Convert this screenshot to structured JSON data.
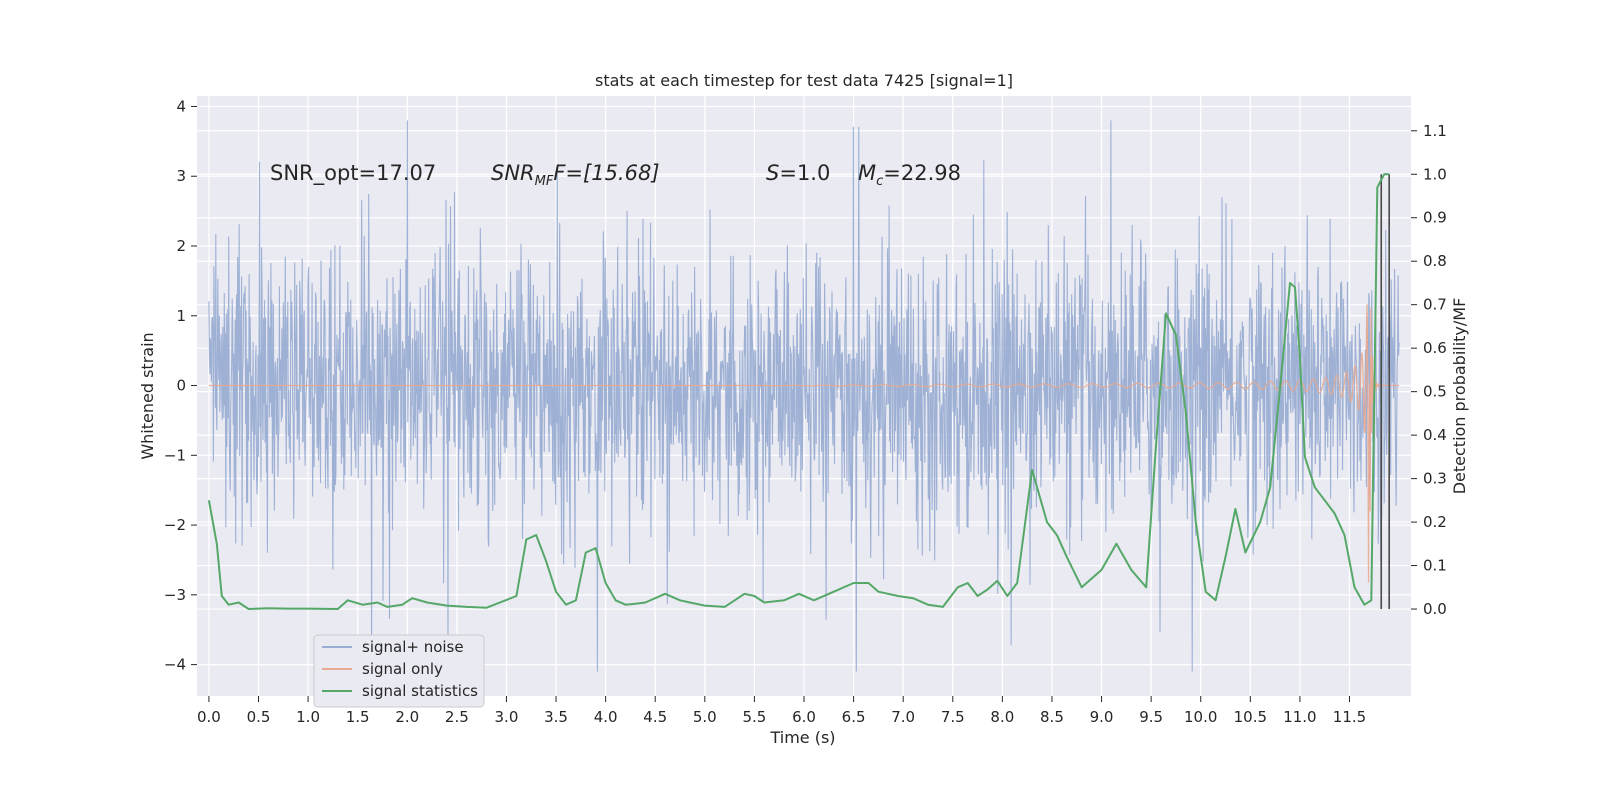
{
  "chart_data": {
    "type": "line",
    "title": "stats at each timestep for test data 7425 [signal=1]",
    "xlabel": "Time (s)",
    "ylabel_left": "Whitened strain",
    "ylabel_right": "Detection probability/MF",
    "xlim": [
      -0.12,
      12.12
    ],
    "ylim_left": [
      -4.45,
      4.15
    ],
    "ylim_right": [
      -0.2,
      1.18
    ],
    "x_ticks": [
      0,
      0.5,
      1,
      1.5,
      2,
      2.5,
      3,
      3.5,
      4,
      4.5,
      5,
      5.5,
      6,
      6.5,
      7,
      7.5,
      8,
      8.5,
      9,
      9.5,
      10,
      10.5,
      11,
      11.5
    ],
    "x_tick_labels": [
      "0.0",
      "0.5",
      "1.0",
      "1.5",
      "2.0",
      "2.5",
      "3.0",
      "3.5",
      "4.0",
      "4.5",
      "5.0",
      "5.5",
      "6.0",
      "6.5",
      "7.0",
      "7.5",
      "8.0",
      "8.5",
      "9.0",
      "9.5",
      "10.0",
      "10.5",
      "11.0",
      "11.5"
    ],
    "y_left_ticks": [
      -4,
      -3,
      -2,
      -1,
      0,
      1,
      2,
      3,
      4
    ],
    "y_left_tick_labels": [
      "−4",
      "−3",
      "−2",
      "−1",
      "0",
      "1",
      "2",
      "3",
      "4"
    ],
    "y_right_ticks": [
      0,
      0.1,
      0.2,
      0.3,
      0.4,
      0.5,
      0.6,
      0.7,
      0.8,
      0.9,
      1.0,
      1.1
    ],
    "y_right_tick_labels": [
      "0.0",
      "0.1",
      "0.2",
      "0.3",
      "0.4",
      "0.5",
      "0.6",
      "0.7",
      "0.8",
      "0.9",
      "1.0",
      "1.1"
    ],
    "grid": true,
    "legend_position": "lower-left",
    "annotations": [
      {
        "name": "snr-opt",
        "text": "SNR_opt=17.07"
      },
      {
        "name": "snr-mf",
        "base": "SNR",
        "sub": "MF",
        "tail": "F=[15.68]"
      },
      {
        "name": "s-value",
        "base": "S",
        "tail": "=1.0"
      },
      {
        "name": "chirp-mass",
        "base": "M",
        "sub": "c",
        "tail": "=22.98"
      }
    ],
    "series": [
      {
        "name": "signal+ noise",
        "axis": "left",
        "color": "#9aaed3",
        "style": "dense-noise",
        "x_range": [
          0,
          12
        ],
        "typical_amplitude": 1.2,
        "peak_range": [
          -4.1,
          3.8
        ]
      },
      {
        "name": "signal only",
        "axis": "left",
        "color": "#e8a98f",
        "style": "chirp",
        "x_range": [
          0,
          12
        ],
        "merger_time": 11.7,
        "peak_amplitude": 2.9
      },
      {
        "name": "signal statistics",
        "axis": "right",
        "color": "#55a868",
        "x": [
          0,
          0.08,
          0.13,
          0.2,
          0.3,
          0.4,
          0.6,
          0.8,
          1.0,
          1.3,
          1.4,
          1.55,
          1.7,
          1.8,
          1.95,
          2.05,
          2.2,
          2.4,
          2.6,
          2.8,
          3.1,
          3.2,
          3.3,
          3.4,
          3.5,
          3.6,
          3.7,
          3.8,
          3.9,
          4.0,
          4.1,
          4.2,
          4.3,
          4.4,
          4.6,
          4.75,
          4.85,
          5.0,
          5.2,
          5.4,
          5.5,
          5.6,
          5.8,
          5.95,
          6.1,
          6.3,
          6.5,
          6.65,
          6.75,
          6.95,
          7.1,
          7.25,
          7.4,
          7.55,
          7.65,
          7.75,
          7.85,
          7.95,
          8.05,
          8.15,
          8.3,
          8.45,
          8.55,
          8.65,
          8.8,
          9.0,
          9.15,
          9.3,
          9.45,
          9.55,
          9.65,
          9.75,
          9.85,
          9.95,
          10.05,
          10.15,
          10.25,
          10.35,
          10.45,
          10.6,
          10.7,
          10.8,
          10.9,
          10.95,
          11.0,
          11.05,
          11.15,
          11.25,
          11.35,
          11.45,
          11.55,
          11.65,
          11.72,
          11.78,
          11.85,
          11.9
        ],
        "y": [
          0.25,
          0.15,
          0.03,
          0.01,
          0.015,
          0.0,
          0.002,
          0.001,
          0.001,
          0.0,
          0.02,
          0.01,
          0.015,
          0.005,
          0.01,
          0.025,
          0.015,
          0.008,
          0.005,
          0.003,
          0.03,
          0.16,
          0.17,
          0.11,
          0.04,
          0.01,
          0.02,
          0.13,
          0.14,
          0.06,
          0.02,
          0.01,
          0.012,
          0.015,
          0.035,
          0.02,
          0.015,
          0.008,
          0.005,
          0.035,
          0.03,
          0.015,
          0.02,
          0.035,
          0.02,
          0.04,
          0.06,
          0.06,
          0.04,
          0.03,
          0.025,
          0.01,
          0.005,
          0.05,
          0.06,
          0.03,
          0.045,
          0.065,
          0.03,
          0.06,
          0.32,
          0.2,
          0.17,
          0.12,
          0.05,
          0.09,
          0.15,
          0.09,
          0.05,
          0.38,
          0.68,
          0.63,
          0.45,
          0.2,
          0.04,
          0.02,
          0.12,
          0.23,
          0.13,
          0.2,
          0.28,
          0.51,
          0.75,
          0.74,
          0.58,
          0.35,
          0.28,
          0.25,
          0.22,
          0.17,
          0.05,
          0.01,
          0.02,
          0.97,
          1.0,
          1.0
        ]
      }
    ],
    "vertical_markers": [
      11.82,
      11.9
    ]
  }
}
